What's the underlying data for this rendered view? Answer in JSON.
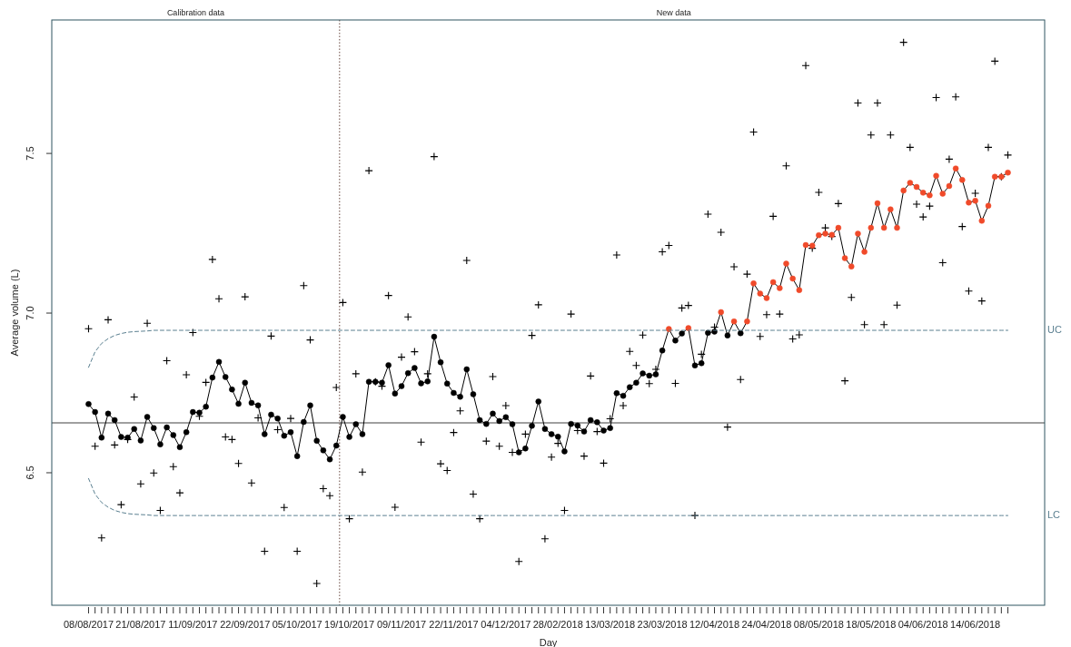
{
  "chart_data": {
    "type": "line",
    "xlabel": "Day",
    "ylabel": "Average volume (L)",
    "categories": [
      "08/08/2017",
      null,
      null,
      null,
      null,
      null,
      null,
      null,
      "21/08/2017",
      null,
      null,
      null,
      null,
      null,
      null,
      null,
      "11/09/2017",
      null,
      null,
      null,
      null,
      null,
      null,
      null,
      "22/09/2017",
      null,
      null,
      null,
      null,
      null,
      null,
      null,
      "05/10/2017",
      null,
      null,
      null,
      null,
      null,
      null,
      null,
      "19/10/2017",
      null,
      null,
      null,
      null,
      null,
      null,
      null,
      "09/11/2017",
      null,
      null,
      null,
      null,
      null,
      null,
      null,
      "22/11/2017",
      null,
      null,
      null,
      null,
      null,
      null,
      null,
      "04/12/2017",
      null,
      null,
      null,
      null,
      null,
      null,
      null,
      "28/02/2018",
      null,
      null,
      null,
      null,
      null,
      null,
      null,
      "13/03/2018",
      null,
      null,
      null,
      null,
      null,
      null,
      null,
      "23/03/2018",
      null,
      null,
      null,
      null,
      null,
      null,
      null,
      "12/04/2018",
      null,
      null,
      null,
      null,
      null,
      null,
      null,
      "24/04/2018",
      null,
      null,
      null,
      null,
      null,
      null,
      null,
      "08/05/2018",
      null,
      null,
      null,
      null,
      null,
      null,
      null,
      "18/05/2018",
      null,
      null,
      null,
      null,
      null,
      null,
      null,
      "04/06/2018",
      null,
      null,
      null,
      null,
      null,
      null,
      null,
      "14/06/2018",
      null,
      null,
      null,
      null,
      null
    ],
    "ylim": [
      6.085,
      7.918
    ],
    "yticks": [
      {
        "value": 6.5,
        "label": "6.5"
      },
      {
        "value": 7.0,
        "label": "7.0"
      },
      {
        "value": 7.5,
        "label": "7.5"
      }
    ],
    "grid": false,
    "series": [
      {
        "type": "scatter",
        "marker": "cross",
        "color": "#000000",
        "values": [
          6.951,
          6.583,
          6.296,
          6.979,
          6.587,
          6.4,
          6.604,
          6.737,
          6.465,
          6.968,
          6.499,
          6.382,
          6.851,
          6.519,
          6.437,
          6.807,
          6.939,
          6.677,
          6.783,
          7.168,
          7.045,
          6.612,
          6.604,
          6.529,
          7.051,
          6.468,
          6.672,
          6.254,
          6.928,
          6.635,
          6.391,
          6.67,
          6.254,
          7.086,
          6.916,
          6.153,
          6.45,
          6.428,
          6.767,
          7.033,
          6.356,
          6.81,
          6.502,
          7.446,
          6.785,
          6.771,
          7.055,
          6.392,
          6.862,
          6.988,
          6.879,
          6.596,
          6.81,
          7.49,
          6.528,
          6.507,
          6.626,
          6.694,
          7.165,
          6.433,
          6.356,
          6.599,
          6.801,
          6.583,
          6.71,
          6.564,
          6.222,
          6.621,
          6.93,
          7.026,
          6.293,
          6.549,
          6.592,
          6.382,
          6.997,
          6.632,
          6.552,
          6.803,
          6.629,
          6.53,
          6.669,
          7.182,
          6.71,
          6.88,
          6.836,
          6.931,
          6.779,
          6.824,
          7.192,
          7.212,
          6.78,
          7.016,
          7.024,
          6.366,
          6.871,
          7.31,
          6.956,
          7.253,
          6.643,
          7.145,
          6.792,
          7.122,
          7.567,
          6.927,
          6.995,
          7.303,
          6.997,
          7.461,
          6.919,
          6.932,
          7.775,
          7.203,
          7.378,
          7.267,
          7.24,
          7.343,
          6.788,
          7.049,
          7.658,
          6.964,
          7.558,
          7.658,
          6.964,
          7.558,
          7.025,
          7.848,
          7.519,
          7.341,
          7.301,
          7.335,
          7.675,
          7.158,
          7.482,
          7.677,
          7.271,
          7.069,
          7.375,
          7.038,
          7.519,
          7.789,
          7.427,
          7.495
        ]
      },
      {
        "marker": "circle",
        "line_style": "solid",
        "color": "#000000",
        "values": [
          6.715,
          6.69,
          6.61,
          6.685,
          6.665,
          6.612,
          6.61,
          6.637,
          6.601,
          6.675,
          6.64,
          6.589,
          6.642,
          6.618,
          6.58,
          6.627,
          6.69,
          6.688,
          6.707,
          6.798,
          6.847,
          6.8,
          6.761,
          6.716,
          6.782,
          6.719,
          6.711,
          6.621,
          6.682,
          6.67,
          6.616,
          6.627,
          6.552,
          6.659,
          6.711,
          6.6,
          6.57,
          6.542,
          6.585,
          6.675,
          6.612,
          6.652,
          6.621,
          6.785,
          6.785,
          6.782,
          6.837,
          6.748,
          6.771,
          6.812,
          6.828,
          6.78,
          6.786,
          6.926,
          6.846,
          6.779,
          6.75,
          6.738,
          6.824,
          6.746,
          6.665,
          6.653,
          6.685,
          6.662,
          6.674,
          6.652,
          6.564,
          6.576,
          6.647,
          6.723,
          6.637,
          6.621,
          6.613,
          6.567,
          6.653,
          6.648,
          6.629,
          6.665,
          6.658,
          6.632,
          6.64,
          6.749,
          6.741,
          6.768,
          6.782,
          6.811,
          6.804,
          6.808,
          6.883,
          6.95,
          6.914,
          6.936,
          6.953,
          6.836,
          6.843,
          6.938,
          6.942,
          7.003,
          6.93,
          6.974,
          6.937,
          6.974,
          7.093,
          7.061,
          7.047,
          7.097,
          7.078,
          7.155,
          7.108,
          7.072,
          7.213,
          7.211,
          7.244,
          7.249,
          7.245,
          7.267,
          7.172,
          7.146,
          7.249,
          7.192,
          7.267,
          7.344,
          7.267,
          7.325,
          7.267,
          7.384,
          7.408,
          7.395,
          7.377,
          7.369,
          7.43,
          7.374,
          7.398,
          7.453,
          7.417,
          7.346,
          7.352,
          7.289,
          7.336,
          7.427,
          7.427,
          7.44
        ],
        "colors": [
          "#000000",
          "#000000",
          "#000000",
          "#000000",
          "#000000",
          "#000000",
          "#000000",
          "#000000",
          "#000000",
          "#000000",
          "#000000",
          "#000000",
          "#000000",
          "#000000",
          "#000000",
          "#000000",
          "#000000",
          "#000000",
          "#000000",
          "#000000",
          "#000000",
          "#000000",
          "#000000",
          "#000000",
          "#000000",
          "#000000",
          "#000000",
          "#000000",
          "#000000",
          "#000000",
          "#000000",
          "#000000",
          "#000000",
          "#000000",
          "#000000",
          "#000000",
          "#000000",
          "#000000",
          "#000000",
          "#000000",
          "#000000",
          "#000000",
          "#000000",
          "#000000",
          "#000000",
          "#000000",
          "#000000",
          "#000000",
          "#000000",
          "#000000",
          "#000000",
          "#000000",
          "#000000",
          "#000000",
          "#000000",
          "#000000",
          "#000000",
          "#000000",
          "#000000",
          "#000000",
          "#000000",
          "#000000",
          "#000000",
          "#000000",
          "#000000",
          "#000000",
          "#000000",
          "#000000",
          "#000000",
          "#000000",
          "#000000",
          "#000000",
          "#000000",
          "#000000",
          "#000000",
          "#000000",
          "#000000",
          "#000000",
          "#000000",
          "#000000",
          "#000000",
          "#000000",
          "#000000",
          "#000000",
          "#000000",
          "#000000",
          "#000000",
          "#000000",
          "#000000",
          "#f04a2a",
          "#000000",
          "#000000",
          "#f04a2a",
          "#000000",
          "#000000",
          "#000000",
          "#000000",
          "#f04a2a",
          "#000000",
          "#f04a2a",
          "#000000",
          "#f04a2a",
          "#f04a2a",
          "#f04a2a",
          "#f04a2a",
          "#f04a2a",
          "#f04a2a",
          "#f04a2a",
          "#f04a2a",
          "#f04a2a",
          "#f04a2a",
          "#f04a2a",
          "#f04a2a",
          "#f04a2a",
          "#f04a2a",
          "#f04a2a",
          "#f04a2a",
          "#f04a2a",
          "#f04a2a",
          "#f04a2a",
          "#f04a2a",
          "#f04a2a",
          "#f04a2a",
          "#f04a2a",
          "#f04a2a",
          "#f04a2a",
          "#f04a2a",
          "#f04a2a",
          "#f04a2a",
          "#f04a2a",
          "#f04a2a",
          "#f04a2a",
          "#f04a2a",
          "#f04a2a",
          "#f04a2a",
          "#f04a2a",
          "#f04a2a",
          "#f04a2a",
          "#f04a2a",
          "#f04a2a",
          "#f04a2a",
          "#f04a2a"
        ]
      },
      {
        "type": "line",
        "marker": "none",
        "line_style": "dashed",
        "color": "#5a7f90",
        "values": [
          6.83,
          6.879,
          6.905,
          6.92,
          6.93,
          6.936,
          6.94,
          6.942,
          6.943,
          6.944,
          6.946,
          6.946,
          6.946,
          6.946,
          6.946,
          6.946,
          6.946,
          6.946,
          6.946,
          6.946,
          6.946,
          6.946,
          6.946,
          6.946,
          6.946,
          6.946,
          6.946,
          6.946,
          6.946,
          6.946,
          6.946,
          6.946,
          6.946,
          6.946,
          6.946,
          6.946,
          6.946,
          6.946,
          6.946,
          6.946,
          6.946,
          6.946,
          6.946,
          6.946,
          6.946,
          6.946,
          6.946,
          6.946,
          6.946,
          6.946,
          6.946,
          6.946,
          6.946,
          6.946,
          6.946,
          6.946,
          6.946,
          6.946,
          6.946,
          6.946,
          6.946,
          6.946,
          6.946,
          6.946,
          6.946,
          6.946,
          6.946,
          6.946,
          6.946,
          6.946,
          6.946,
          6.946,
          6.946,
          6.946,
          6.946,
          6.946,
          6.946,
          6.946,
          6.946,
          6.946,
          6.946,
          6.946,
          6.946,
          6.946,
          6.946,
          6.946,
          6.946,
          6.946,
          6.946,
          6.946,
          6.946,
          6.946,
          6.946,
          6.946,
          6.946,
          6.946,
          6.946,
          6.946,
          6.946,
          6.946,
          6.946,
          6.946,
          6.946,
          6.946,
          6.946,
          6.946,
          6.946,
          6.946,
          6.946,
          6.946,
          6.946,
          6.946,
          6.946,
          6.946,
          6.946,
          6.946,
          6.946,
          6.946,
          6.946,
          6.946,
          6.946,
          6.946,
          6.946,
          6.946,
          6.946,
          6.946,
          6.946,
          6.946,
          6.946,
          6.946,
          6.946,
          6.946,
          6.946,
          6.946,
          6.946,
          6.946,
          6.946,
          6.946,
          6.946,
          6.946,
          6.946,
          6.946
        ]
      },
      {
        "type": "line",
        "marker": "none",
        "line_style": "dashed",
        "color": "#5a7f90",
        "values": [
          6.482,
          6.433,
          6.407,
          6.392,
          6.382,
          6.376,
          6.372,
          6.37,
          6.369,
          6.368,
          6.366,
          6.366,
          6.366,
          6.366,
          6.366,
          6.366,
          6.366,
          6.366,
          6.366,
          6.366,
          6.366,
          6.366,
          6.366,
          6.366,
          6.366,
          6.366,
          6.366,
          6.366,
          6.366,
          6.366,
          6.366,
          6.366,
          6.366,
          6.366,
          6.366,
          6.366,
          6.366,
          6.366,
          6.366,
          6.366,
          6.366,
          6.366,
          6.366,
          6.366,
          6.366,
          6.366,
          6.366,
          6.366,
          6.366,
          6.366,
          6.366,
          6.366,
          6.366,
          6.366,
          6.366,
          6.366,
          6.366,
          6.366,
          6.366,
          6.366,
          6.366,
          6.366,
          6.366,
          6.366,
          6.366,
          6.366,
          6.366,
          6.366,
          6.366,
          6.366,
          6.366,
          6.366,
          6.366,
          6.366,
          6.366,
          6.366,
          6.366,
          6.366,
          6.366,
          6.366,
          6.366,
          6.366,
          6.366,
          6.366,
          6.366,
          6.366,
          6.366,
          6.366,
          6.366,
          6.366,
          6.366,
          6.366,
          6.366,
          6.366,
          6.366,
          6.366,
          6.366,
          6.366,
          6.366,
          6.366,
          6.366,
          6.366,
          6.366,
          6.366,
          6.366,
          6.366,
          6.366,
          6.366,
          6.366,
          6.366,
          6.366,
          6.366,
          6.366,
          6.366,
          6.366,
          6.366,
          6.366,
          6.366,
          6.366,
          6.366,
          6.366,
          6.366,
          6.366,
          6.366,
          6.366,
          6.366,
          6.366,
          6.366,
          6.366,
          6.366,
          6.366,
          6.366,
          6.366,
          6.366,
          6.366,
          6.366,
          6.366,
          6.366,
          6.366,
          6.366,
          6.366,
          6.366
        ]
      }
    ],
    "ref_lines": [
      {
        "axis": "y",
        "value": 6.656,
        "color": "#808080",
        "line_style": "solid"
      }
    ],
    "annotations": [
      "Calibration data",
      "New data",
      "UC",
      "LC"
    ]
  }
}
